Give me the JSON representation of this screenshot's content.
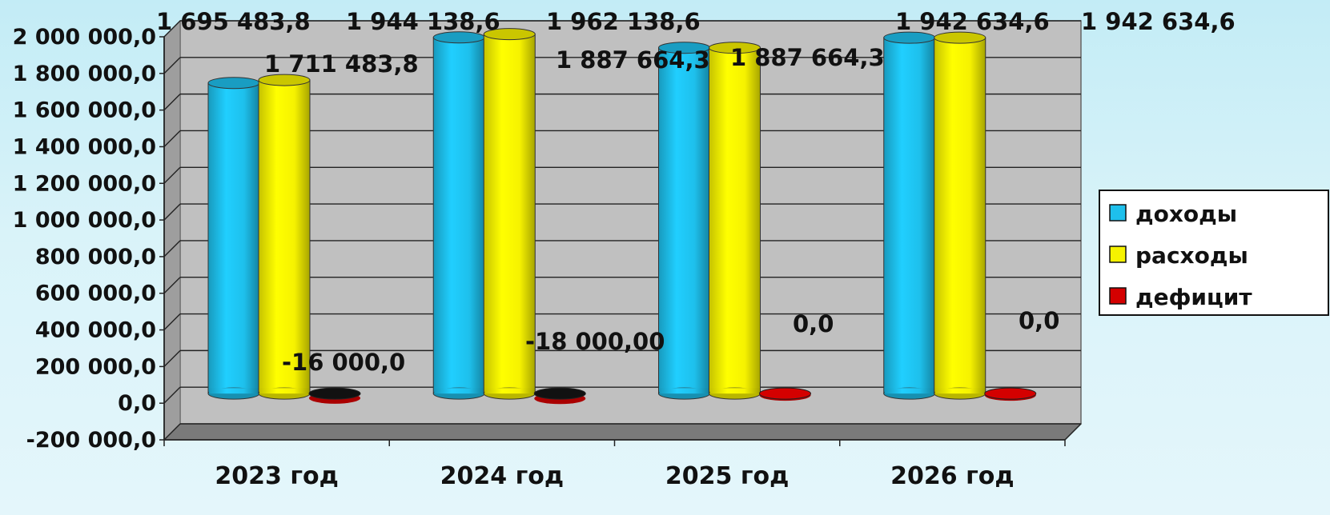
{
  "chart_data": {
    "type": "bar",
    "categories": [
      "2023 год",
      "2024 год",
      "2025 год",
      "2026 год"
    ],
    "series": [
      {
        "name": "доходы",
        "color": "#1ec0ec",
        "values": [
          1695483.8,
          1944138.6,
          1887664.3,
          1942634.6
        ]
      },
      {
        "name": "расходы",
        "color": "#f6f200",
        "values": [
          1711483.8,
          1962138.6,
          1887664.3,
          1942634.6
        ]
      },
      {
        "name": "дефицит",
        "color": "#d40000",
        "values": [
          -16000.0,
          -18000.0,
          0.0,
          0.0
        ]
      }
    ],
    "data_labels": [
      [
        "1 695 483,8",
        "1 944 138,6",
        "1 887 664,3",
        "1 942 634,6"
      ],
      [
        "1 711 483,8",
        "1 962 138,6",
        "1 887 664,3",
        "1 942 634,6"
      ],
      [
        "-16 000,0",
        "-18 000,00",
        "0,0",
        "0,0"
      ]
    ],
    "yticks": [
      "-200 000,0",
      "0,0",
      "200 000,0",
      "400 000,0",
      "600 000,0",
      "800 000,0",
      "1 000 000,0",
      "1 200 000,0",
      "1 400 000,0",
      "1 600 000,0",
      "1 800 000,0",
      "2 000 000,0"
    ],
    "ylim": [
      -200000,
      2000000
    ],
    "grid": true,
    "legend": "right",
    "title": "",
    "xlabel": "",
    "ylabel": ""
  }
}
